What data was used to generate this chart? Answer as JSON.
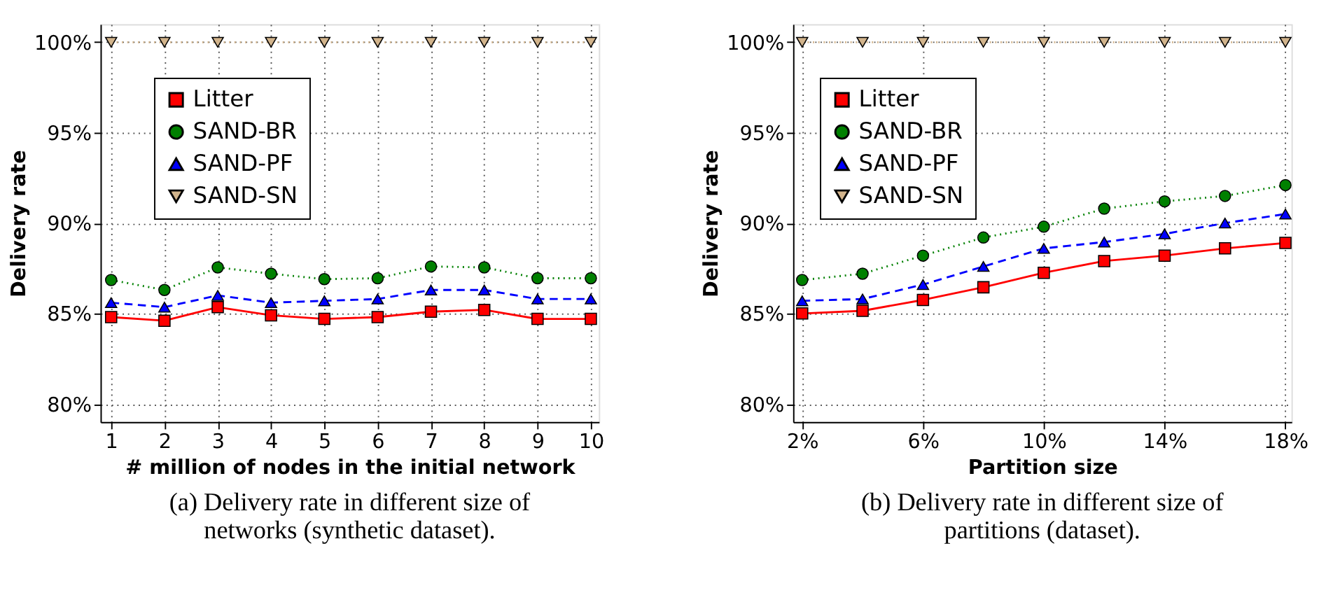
{
  "chart_data": [
    {
      "type": "line",
      "xlabel": "# million of nodes in the initial network",
      "ylabel": "Delivery rate",
      "x": [
        1,
        2,
        3,
        4,
        5,
        6,
        7,
        8,
        9,
        10
      ],
      "series": [
        {
          "name": "Litter",
          "color": "#ff0000",
          "marker": "square",
          "line_style": "solid",
          "values": [
            84.8,
            84.6,
            85.35,
            84.9,
            84.7,
            84.8,
            85.1,
            85.2,
            84.7,
            84.7
          ]
        },
        {
          "name": "SAND-BR",
          "color": "#008000",
          "marker": "circle",
          "line_style": "dotted",
          "values": [
            86.85,
            86.3,
            87.55,
            87.2,
            86.9,
            86.95,
            87.6,
            87.55,
            86.95,
            86.95
          ]
        },
        {
          "name": "SAND-PF",
          "color": "#0000ff",
          "marker": "triangle",
          "line_style": "dashed",
          "values": [
            85.6,
            85.35,
            86.0,
            85.6,
            85.7,
            85.8,
            86.3,
            86.3,
            85.8,
            85.8
          ]
        },
        {
          "name": "SAND-SN",
          "color": "#d2b48c",
          "marker": "triangle-down",
          "line_style": "dotted",
          "values": [
            100,
            100,
            100,
            100,
            100,
            100,
            100,
            100,
            100,
            100
          ]
        }
      ],
      "xlim": [
        0.8,
        10.15
      ],
      "xticks": [
        1,
        2,
        3,
        4,
        5,
        6,
        7,
        8,
        9,
        10
      ],
      "ylim": [
        79,
        101
      ],
      "yticks": [
        {
          "value": 80,
          "label": "80%"
        },
        {
          "value": 85,
          "label": "85%"
        },
        {
          "value": 90,
          "label": "90%"
        },
        {
          "value": 95,
          "label": "95%"
        },
        {
          "value": 100,
          "label": "100%"
        }
      ],
      "grid": true,
      "legend": "top left",
      "annotations": [
        "(a) Delivery rate in different size of networks (synthetic dataset)."
      ]
    },
    {
      "type": "line",
      "xlabel": "Partition size",
      "ylabel": "Delivery rate",
      "x": [
        2,
        4,
        6,
        8,
        10,
        12,
        14,
        16,
        18
      ],
      "series": [
        {
          "name": "Litter",
          "color": "#ff0000",
          "marker": "square",
          "line_style": "solid",
          "values": [
            85.0,
            85.15,
            85.75,
            86.45,
            87.25,
            87.9,
            88.2,
            88.6,
            88.9
          ]
        },
        {
          "name": "SAND-BR",
          "color": "#008000",
          "marker": "circle",
          "line_style": "dotted",
          "values": [
            86.85,
            87.2,
            88.2,
            89.2,
            89.8,
            90.8,
            91.2,
            91.5,
            92.1
          ]
        },
        {
          "name": "SAND-PF",
          "color": "#0000ff",
          "marker": "triangle",
          "line_style": "dashed",
          "values": [
            85.7,
            85.8,
            86.6,
            87.6,
            88.6,
            88.95,
            89.4,
            90.0,
            90.5
          ]
        },
        {
          "name": "SAND-SN",
          "color": "#d2b48c",
          "marker": "triangle-down",
          "line_style": "dotted",
          "values": [
            100,
            100,
            100,
            100,
            100,
            100,
            100,
            100,
            100
          ]
        }
      ],
      "xlim": [
        1.7,
        18.2
      ],
      "xticks": [
        {
          "value": 2,
          "label": "2%"
        },
        {
          "value": 6,
          "label": "6%"
        },
        {
          "value": 10,
          "label": "10%"
        },
        {
          "value": 14,
          "label": "14%"
        },
        {
          "value": 18,
          "label": "18%"
        }
      ],
      "ylim": [
        79,
        101
      ],
      "yticks": [
        {
          "value": 80,
          "label": "80%"
        },
        {
          "value": 85,
          "label": "85%"
        },
        {
          "value": 90,
          "label": "90%"
        },
        {
          "value": 95,
          "label": "95%"
        },
        {
          "value": 100,
          "label": "100%"
        }
      ],
      "grid": true,
      "legend": "top left",
      "annotations": [
        "(b) Delivery rate in different size of partitions (dataset)."
      ]
    }
  ]
}
